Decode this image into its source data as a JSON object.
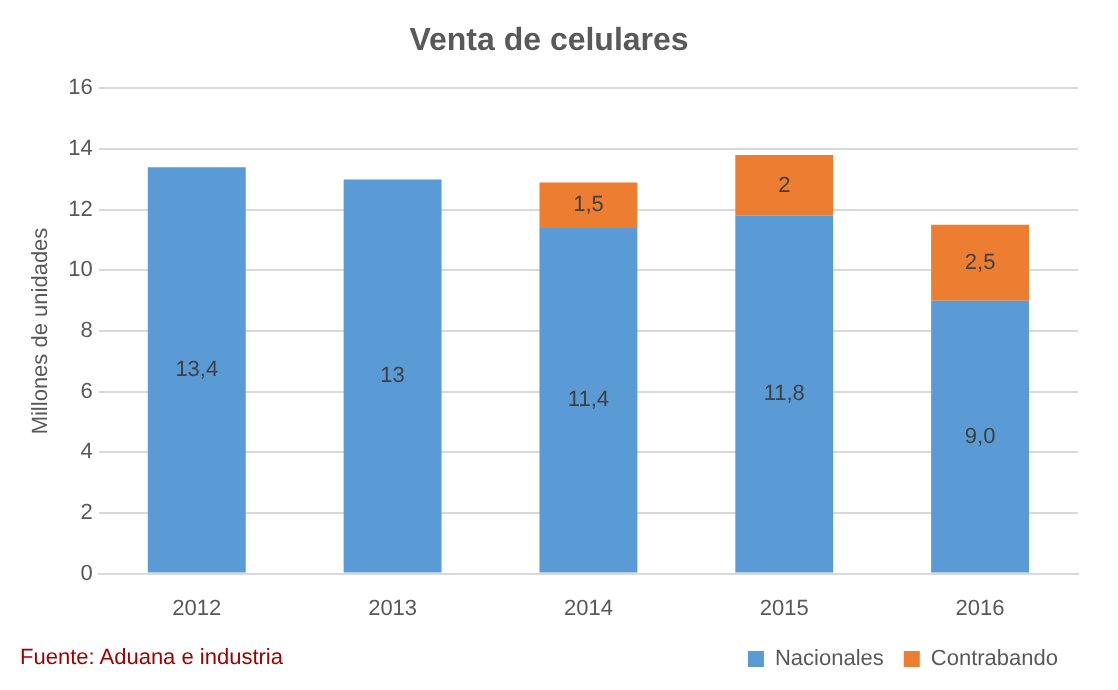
{
  "chart_data": {
    "type": "bar",
    "title": "Venta de celulares",
    "ylabel": "Millones de unidades",
    "categories": [
      "2012",
      "2013",
      "2014",
      "2015",
      "2016"
    ],
    "series": [
      {
        "name": "Nacionales",
        "color": "#5b9bd5",
        "values": [
          13.4,
          13,
          11.4,
          11.8,
          9.0
        ],
        "value_labels": [
          "13,4",
          "13",
          "11,4",
          "11,8",
          "9,0"
        ]
      },
      {
        "name": "Contrabando",
        "color": "#ed7d31",
        "values": [
          null,
          null,
          1.5,
          2,
          2.5
        ],
        "value_labels": [
          null,
          null,
          "1,5",
          "2",
          "2,5"
        ]
      }
    ],
    "stacked": true,
    "ylim": [
      0,
      16
    ],
    "yticks": [
      0,
      2,
      4,
      6,
      8,
      10,
      12,
      14,
      16
    ],
    "grid": "y",
    "legend": "bottom right",
    "annotations": [
      "Fuente: Aduana e industria"
    ]
  }
}
